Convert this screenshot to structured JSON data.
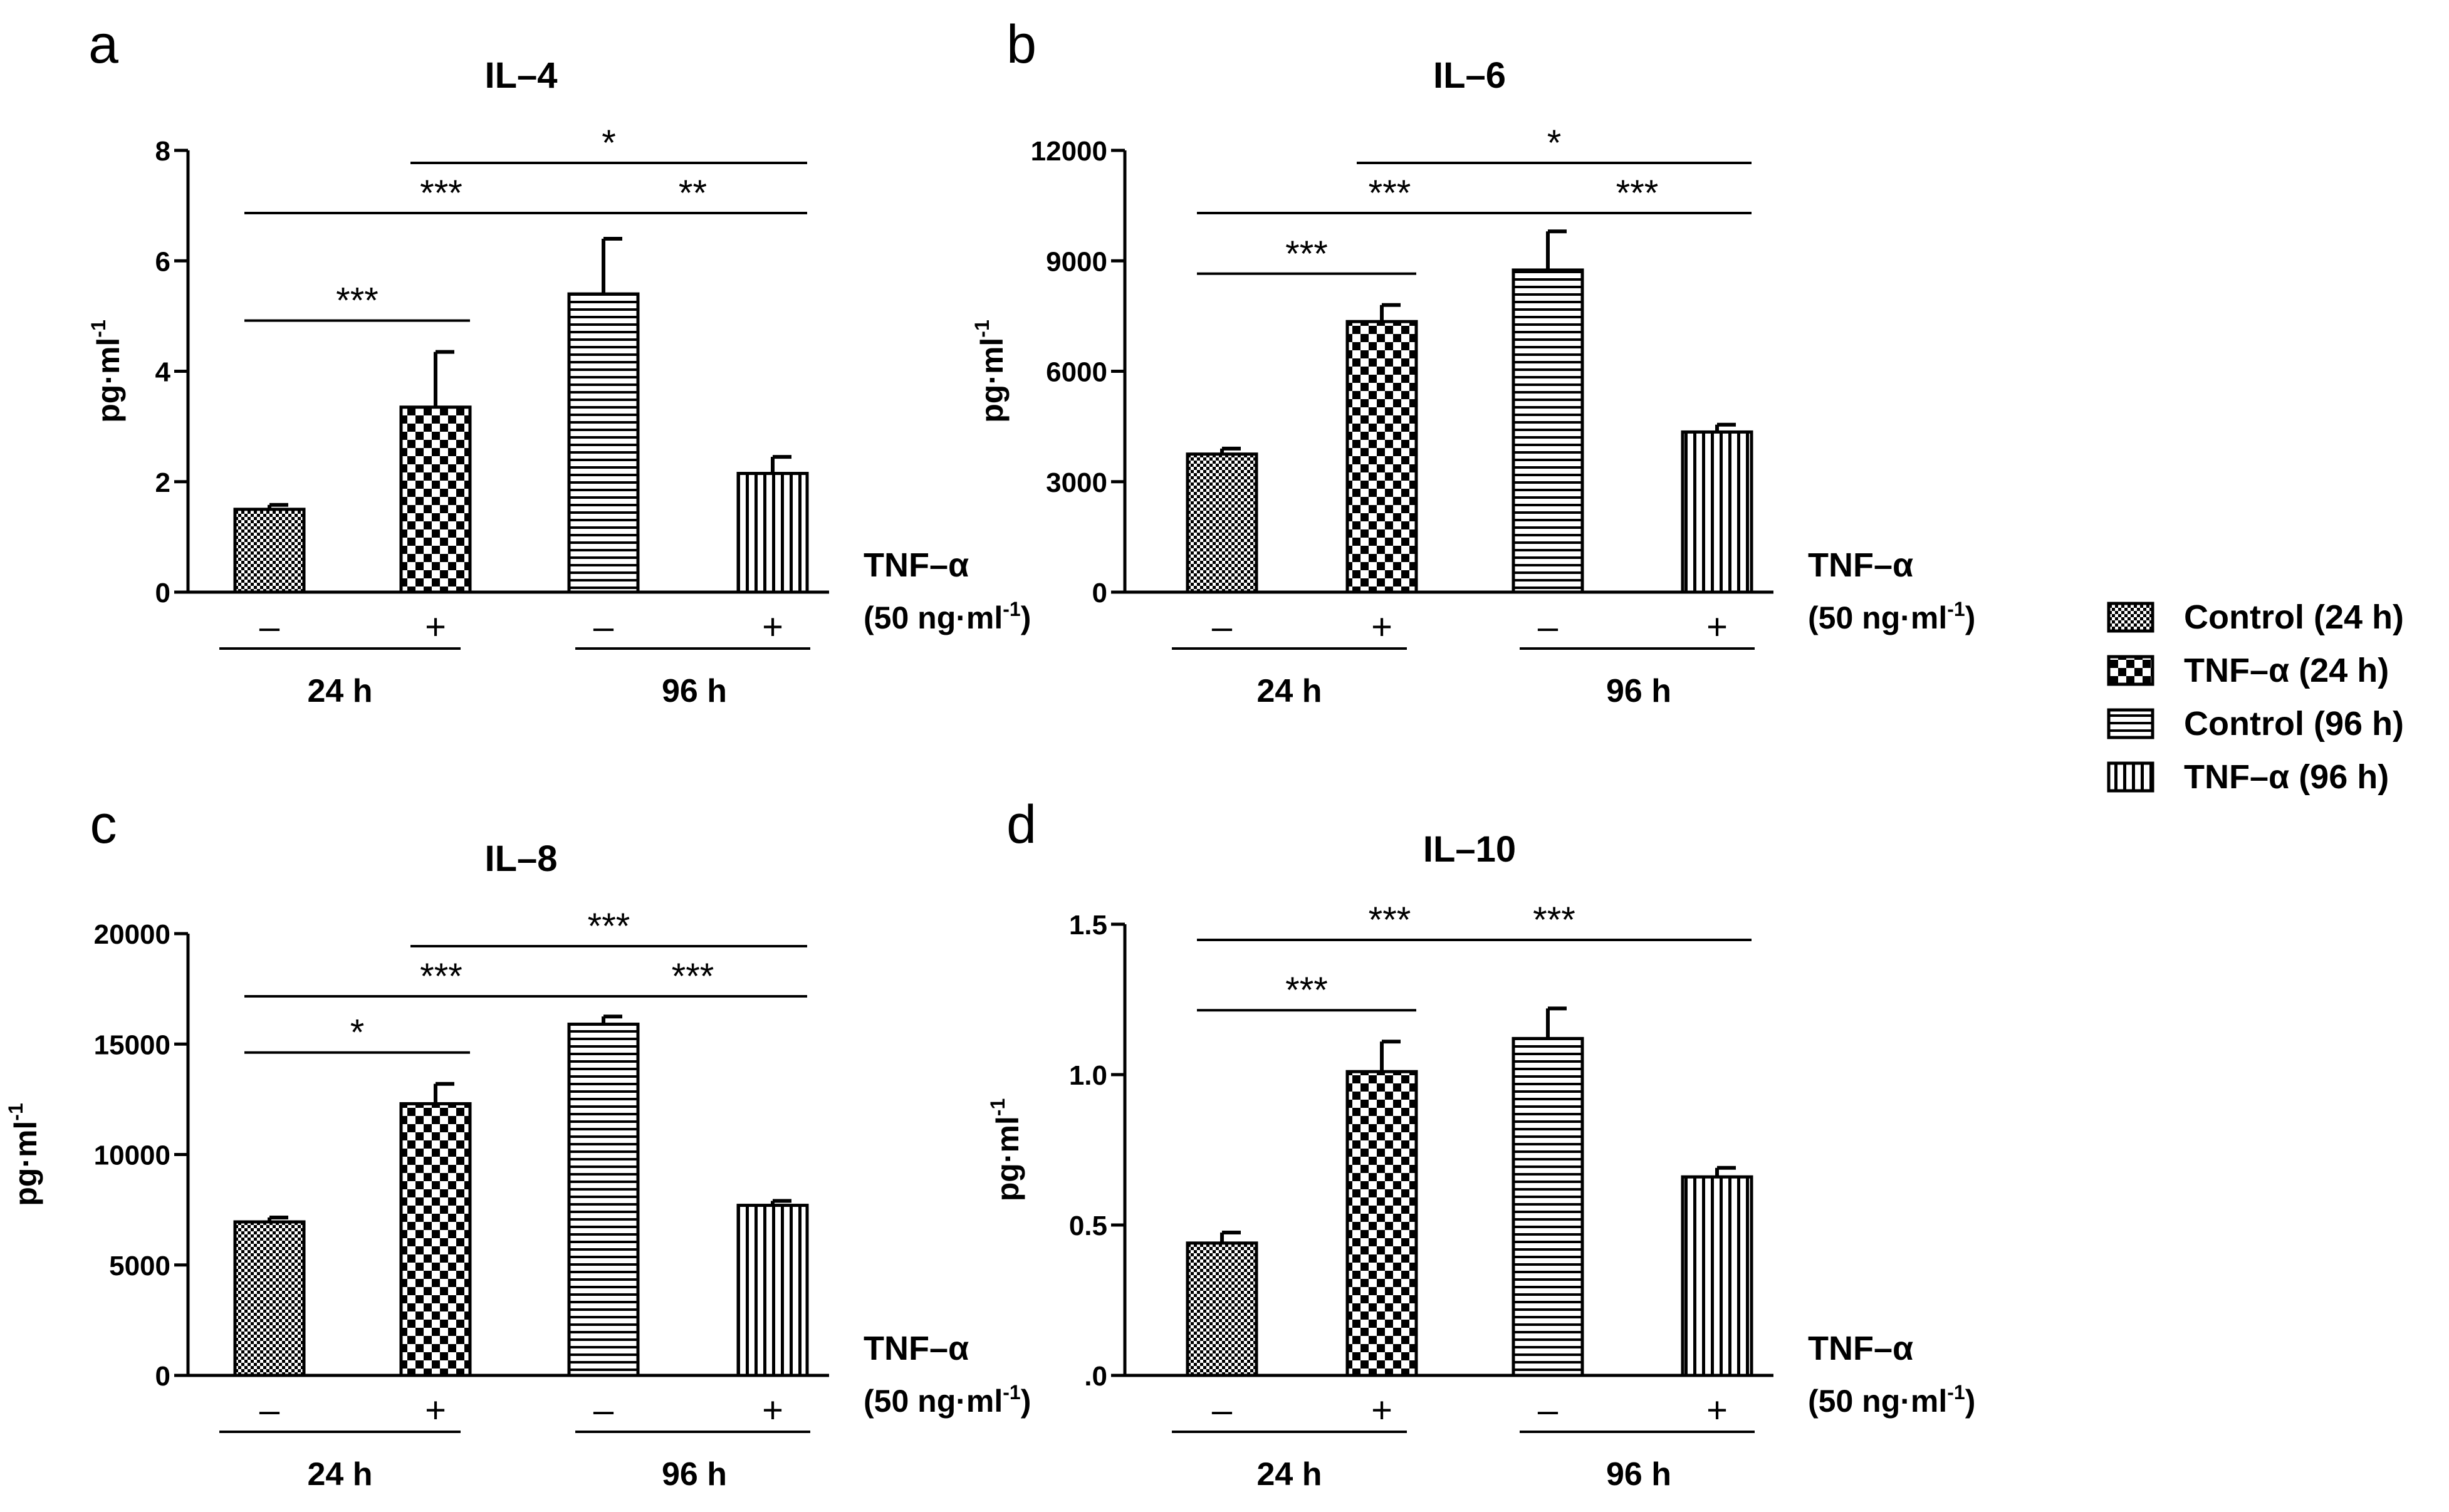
{
  "panel_letters": [
    "a",
    "b",
    "c",
    "d"
  ],
  "treatment_label": "TNF–α",
  "treatment_dose": "(50 ng·ml",
  "treatment_dose_sup": "-1",
  "treatment_dose_close": ")",
  "y_label": "pg·ml",
  "y_label_sup": "-1",
  "minus_sign": "–",
  "plus_sign": "+",
  "group_24": "24 h",
  "group_96": "96 h",
  "legend": {
    "placement": "right",
    "entries": [
      "Control (24 h)",
      "TNF–α (24 h)",
      "Control (96 h)",
      "TNF–α (96 h)"
    ]
  },
  "chart_data": [
    {
      "type": "bar",
      "title": "IL–4",
      "categories": [
        "Control (24 h)",
        "TNF–α (24 h)",
        "Control (96 h)",
        "TNF–α (96 h)"
      ],
      "values": [
        1.5,
        3.35,
        5.4,
        2.15
      ],
      "errors": [
        0.08,
        1.0,
        1.0,
        0.3
      ],
      "ylim": [
        0,
        8
      ],
      "yticks": [
        "0",
        "2",
        "4",
        "6",
        "8"
      ],
      "significance": [
        {
          "from": 0,
          "to": 1,
          "label": "***"
        },
        {
          "from": 0,
          "to": 2,
          "label": "***"
        },
        {
          "from": 2,
          "to": 3,
          "label": "**"
        },
        {
          "from": 1,
          "to": 3,
          "label": "*"
        }
      ]
    },
    {
      "type": "bar",
      "title": "IL–6",
      "categories": [
        "Control (24 h)",
        "TNF–α (24 h)",
        "Control (96 h)",
        "TNF–α (96 h)"
      ],
      "values": [
        3750,
        7350,
        8750,
        4350
      ],
      "errors": [
        150,
        450,
        1050,
        200
      ],
      "ylim": [
        0,
        12000
      ],
      "yticks": [
        "0",
        "3000",
        "6000",
        "9000",
        "12000"
      ],
      "significance": [
        {
          "from": 0,
          "to": 1,
          "label": "***"
        },
        {
          "from": 0,
          "to": 2,
          "label": "***"
        },
        {
          "from": 2,
          "to": 3,
          "label": "***"
        },
        {
          "from": 1,
          "to": 3,
          "label": "*"
        }
      ]
    },
    {
      "type": "bar",
      "title": "IL–8",
      "categories": [
        "Control (24 h)",
        "TNF–α (24 h)",
        "Control (96 h)",
        "TNF–α (96 h)"
      ],
      "values": [
        6950,
        12300,
        15900,
        7700
      ],
      "errors": [
        200,
        900,
        350,
        200
      ],
      "ylim": [
        0,
        20000
      ],
      "yticks": [
        "0",
        "5000",
        "10000",
        "15000",
        "20000"
      ],
      "significance": [
        {
          "from": 0,
          "to": 1,
          "label": "*"
        },
        {
          "from": 0,
          "to": 2,
          "label": "***"
        },
        {
          "from": 2,
          "to": 3,
          "label": "***"
        },
        {
          "from": 1,
          "to": 3,
          "label": "***"
        }
      ]
    },
    {
      "type": "bar",
      "title": "IL–10",
      "categories": [
        "Control (24 h)",
        "TNF–α (24 h)",
        "Control (96 h)",
        "TNF–α (96 h)"
      ],
      "values": [
        0.44,
        1.01,
        1.12,
        0.66
      ],
      "errors": [
        0.035,
        0.1,
        0.1,
        0.03
      ],
      "ylim": [
        0,
        1.5
      ],
      "yticks": [
        ".0",
        "0.5",
        "1.0",
        "1.5"
      ],
      "significance": [
        {
          "from": 0,
          "to": 1,
          "label": "***"
        },
        {
          "from": 0,
          "to": 2,
          "label": "***"
        },
        {
          "from": 1,
          "to": 3,
          "label": "***"
        }
      ]
    }
  ]
}
